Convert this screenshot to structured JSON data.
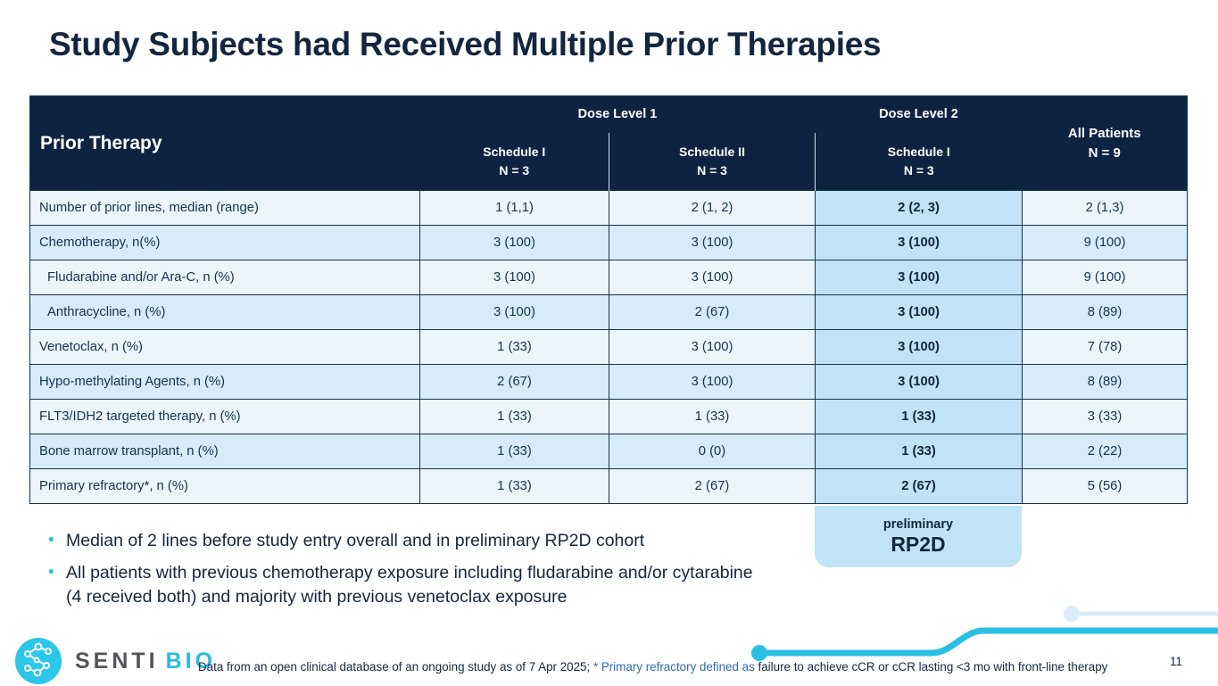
{
  "slide": {
    "title": "Study Subjects had Received Multiple Prior Therapies",
    "page_number": "11"
  },
  "table": {
    "corner_header": "Prior Therapy",
    "group_headers": {
      "dose_level_1": "Dose Level 1",
      "dose_level_2": "Dose Level 2"
    },
    "schedule_headers": [
      {
        "line1": "Schedule I",
        "line2": "N = 3"
      },
      {
        "line1": "Schedule II",
        "line2": "N = 3"
      },
      {
        "line1": "Schedule I",
        "line2": "N = 3"
      }
    ],
    "all_patients_header": {
      "line1": "All Patients",
      "line2": "N = 9"
    },
    "highlight_value_index": 2,
    "rows": [
      {
        "label": "Number of prior lines, median (range)",
        "indent": false,
        "values": [
          "1 (1,1)",
          "2 (1, 2)",
          "2 (2, 3)",
          "2 (1,3)"
        ]
      },
      {
        "label": "Chemotherapy, n(%)",
        "indent": false,
        "values": [
          "3 (100)",
          "3 (100)",
          "3 (100)",
          "9 (100)"
        ]
      },
      {
        "label": "Fludarabine and/or Ara-C, n (%)",
        "indent": true,
        "values": [
          "3 (100)",
          "3 (100)",
          "3 (100)",
          "9 (100)"
        ]
      },
      {
        "label": "Anthracycline, n (%)",
        "indent": true,
        "values": [
          "3 (100)",
          "2 (67)",
          "3 (100)",
          "8 (89)"
        ]
      },
      {
        "label": "Venetoclax, n (%)",
        "indent": false,
        "values": [
          "1 (33)",
          "3 (100)",
          "3 (100)",
          "7 (78)"
        ]
      },
      {
        "label": "Hypo-methylating Agents, n (%)",
        "indent": false,
        "values": [
          "2 (67)",
          "3 (100)",
          "3 (100)",
          "8 (89)"
        ]
      },
      {
        "label": "FLT3/IDH2 targeted therapy, n (%)",
        "indent": false,
        "values": [
          "1 (33)",
          "1 (33)",
          "1 (33)",
          "3 (33)"
        ]
      },
      {
        "label": "Bone marrow transplant, n (%)",
        "indent": false,
        "values": [
          "1 (33)",
          "0 (0)",
          "1 (33)",
          "2 (22)"
        ]
      },
      {
        "label": "Primary refractory*, n (%)",
        "indent": false,
        "values": [
          "1 (33)",
          "2 (67)",
          "2 (67)",
          "5 (56)"
        ]
      }
    ]
  },
  "rp2d_badge": {
    "line1": "preliminary",
    "line2": "RP2D"
  },
  "bullets": [
    "Median of 2 lines before study entry overall and in preliminary RP2D cohort",
    "All patients with previous chemotherapy exposure including fludarabine and/or cytarabine (4 received both) and majority with previous venetoclax exposure"
  ],
  "footer": {
    "logo_senti": "SENTI",
    "logo_bio": "BIO",
    "note_part1": "Data from an open clinical database of an ongoing study as of 7 Apr 2025; ",
    "note_part2": "* Primary refractory defined as ",
    "note_part3": "failure to achieve cCR or cCR lasting <3 mo with front-line therapy"
  },
  "colors": {
    "navy": "#0e2342",
    "accent_cyan": "#29c0e4",
    "row_light": "#eaf5fc",
    "row_dark": "#d7ecf8",
    "highlight_blue": "#c0e3f6",
    "logo_gray": "#55565a",
    "footnote_blue": "#2f6aa8",
    "faded_line": "#dbecf7"
  }
}
